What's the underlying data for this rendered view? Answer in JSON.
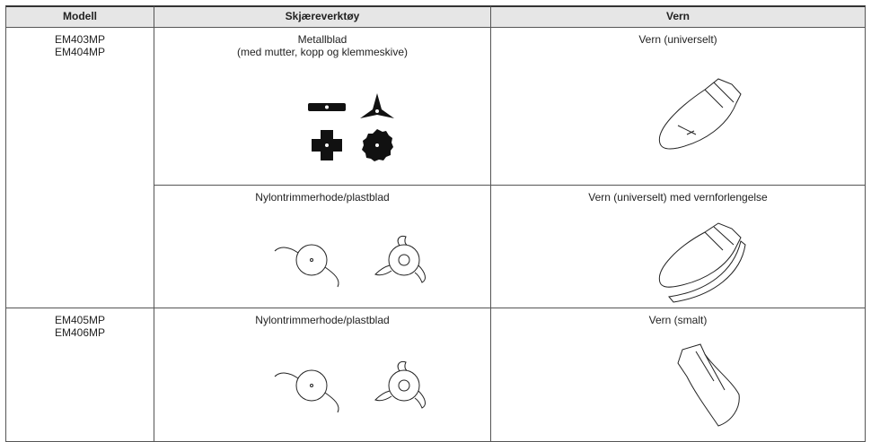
{
  "table": {
    "header": [
      "Modell",
      "Skjæreverktøy",
      "Vern"
    ],
    "groups": [
      {
        "models": [
          "EM403MP",
          "EM404MP"
        ],
        "rows": [
          {
            "tool": [
              "Metallblad",
              "(med mutter, kopp og klemmeskive)"
            ],
            "guard": "Vern (universelt)"
          },
          {
            "tool": [
              "Nylontrimmerhode/plastblad"
            ],
            "guard": "Vern (universelt) med vernforlengelse"
          }
        ]
      },
      {
        "models": [
          "EM405MP",
          "EM406MP"
        ],
        "rows": [
          {
            "tool": [
              "Nylontrimmerhode/plastblad"
            ],
            "guard": "Vern (smalt)"
          }
        ]
      }
    ]
  }
}
